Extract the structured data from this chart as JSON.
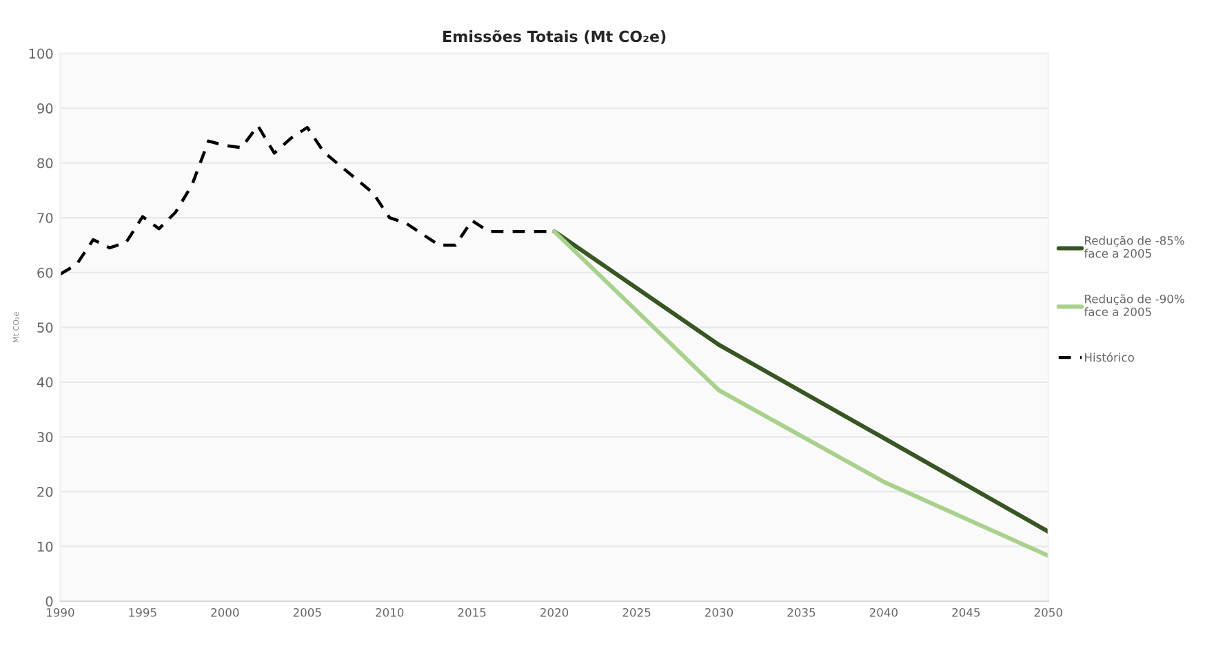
{
  "chart_data": {
    "type": "line",
    "title": "Emissões Totais (Mt CO₂e)",
    "ylabel": "Mt CO₂e",
    "xlim": [
      1990,
      2050
    ],
    "xticks": [
      1990,
      1995,
      2000,
      2005,
      2010,
      2015,
      2020,
      2025,
      2030,
      2035,
      2040,
      2045,
      2050
    ],
    "ylim": [
      0,
      100
    ],
    "yticks": [
      0,
      10,
      20,
      30,
      40,
      50,
      60,
      70,
      80,
      90,
      100
    ],
    "grid": "y",
    "legend": "right",
    "series": [
      {
        "name": "Redução de -85%\nface a 2005",
        "color": "#375623",
        "line_style": "solid",
        "x": [
          2020,
          2030,
          2040,
          2050
        ],
        "values": [
          67.5,
          46.8,
          29.8,
          12.7
        ]
      },
      {
        "name": "Redução de -90%\nface a 2005",
        "color": "#a9d18e",
        "line_style": "solid",
        "x": [
          2020,
          2030,
          2040,
          2050
        ],
        "values": [
          67.5,
          38.5,
          21.8,
          8.3
        ]
      },
      {
        "name": "Histórico",
        "color": "#000000",
        "line_style": "dashed",
        "x": [
          1990,
          1991,
          1992,
          1993,
          1994,
          1995,
          1996,
          1997,
          1998,
          1999,
          2000,
          2001,
          2002,
          2003,
          2004,
          2005,
          2006,
          2007,
          2008,
          2009,
          2010,
          2011,
          2012,
          2013,
          2014,
          2015,
          2016,
          2017,
          2018,
          2019,
          2020
        ],
        "values": [
          59.7,
          61.5,
          66,
          64.5,
          65.5,
          70.2,
          68,
          71,
          76,
          84,
          83.2,
          82.8,
          86.8,
          81.8,
          84.5,
          86.5,
          82,
          79.5,
          77,
          74.5,
          70,
          69,
          67,
          65,
          65,
          69.5,
          67.5,
          67.5,
          67.5,
          67.5,
          67.5
        ]
      }
    ]
  }
}
